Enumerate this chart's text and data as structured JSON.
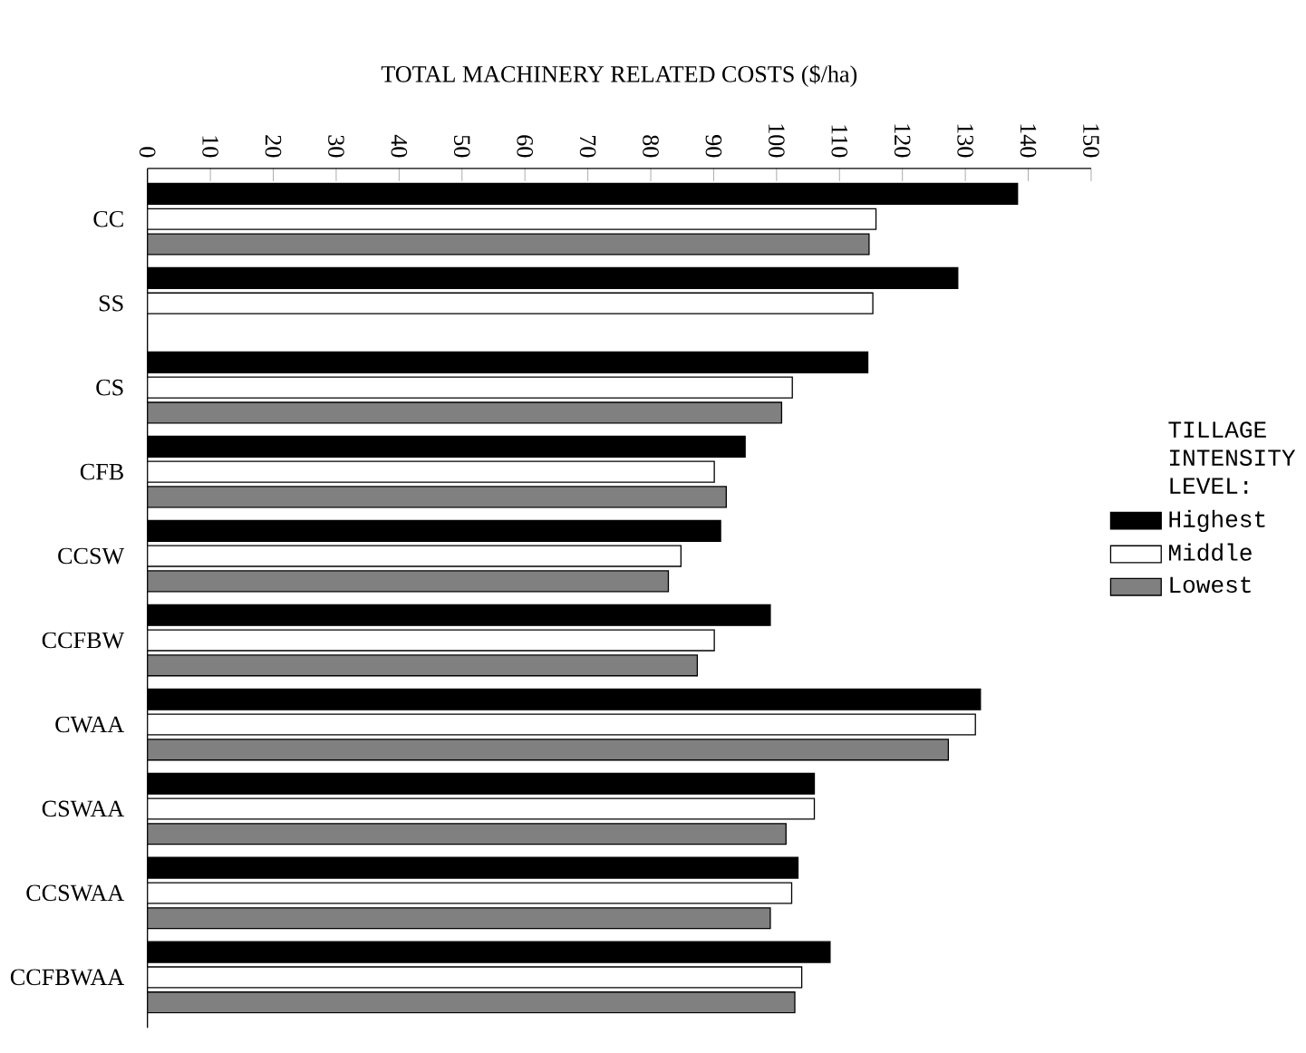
{
  "chart_data": {
    "type": "bar",
    "orientation": "horizontal",
    "xlabel": "TOTAL MACHINERY RELATED COSTS ($/ha)",
    "legend_title": "TILLAGE INTENSITY LEVEL:",
    "legend": "right",
    "categories": [
      "CC",
      "SS",
      "CS",
      "CFB",
      "CCSW",
      "CCFBW",
      "CWAA",
      "CSWAA",
      "CCSWAA",
      "CCFBWAA"
    ],
    "series": [
      {
        "name": "Highest",
        "color": "#000000",
        "values": [
          138.3,
          128.8,
          114.5,
          95.0,
          91.1,
          99.0,
          132.4,
          106.0,
          103.4,
          108.5
        ]
      },
      {
        "name": "Middle",
        "color": "#ffffff",
        "values": [
          115.8,
          115.3,
          102.5,
          90.1,
          84.8,
          90.1,
          131.6,
          106.0,
          102.4,
          104.0
        ]
      },
      {
        "name": "Lowest",
        "color": "#808080",
        "values": [
          114.7,
          null,
          100.8,
          92.0,
          82.8,
          87.4,
          127.3,
          101.5,
          99.0,
          102.9
        ]
      }
    ],
    "xlim": [
      0,
      150
    ],
    "xticks": [
      0,
      10,
      20,
      30,
      40,
      50,
      60,
      70,
      80,
      90,
      100,
      110,
      120,
      130,
      140,
      150
    ]
  }
}
